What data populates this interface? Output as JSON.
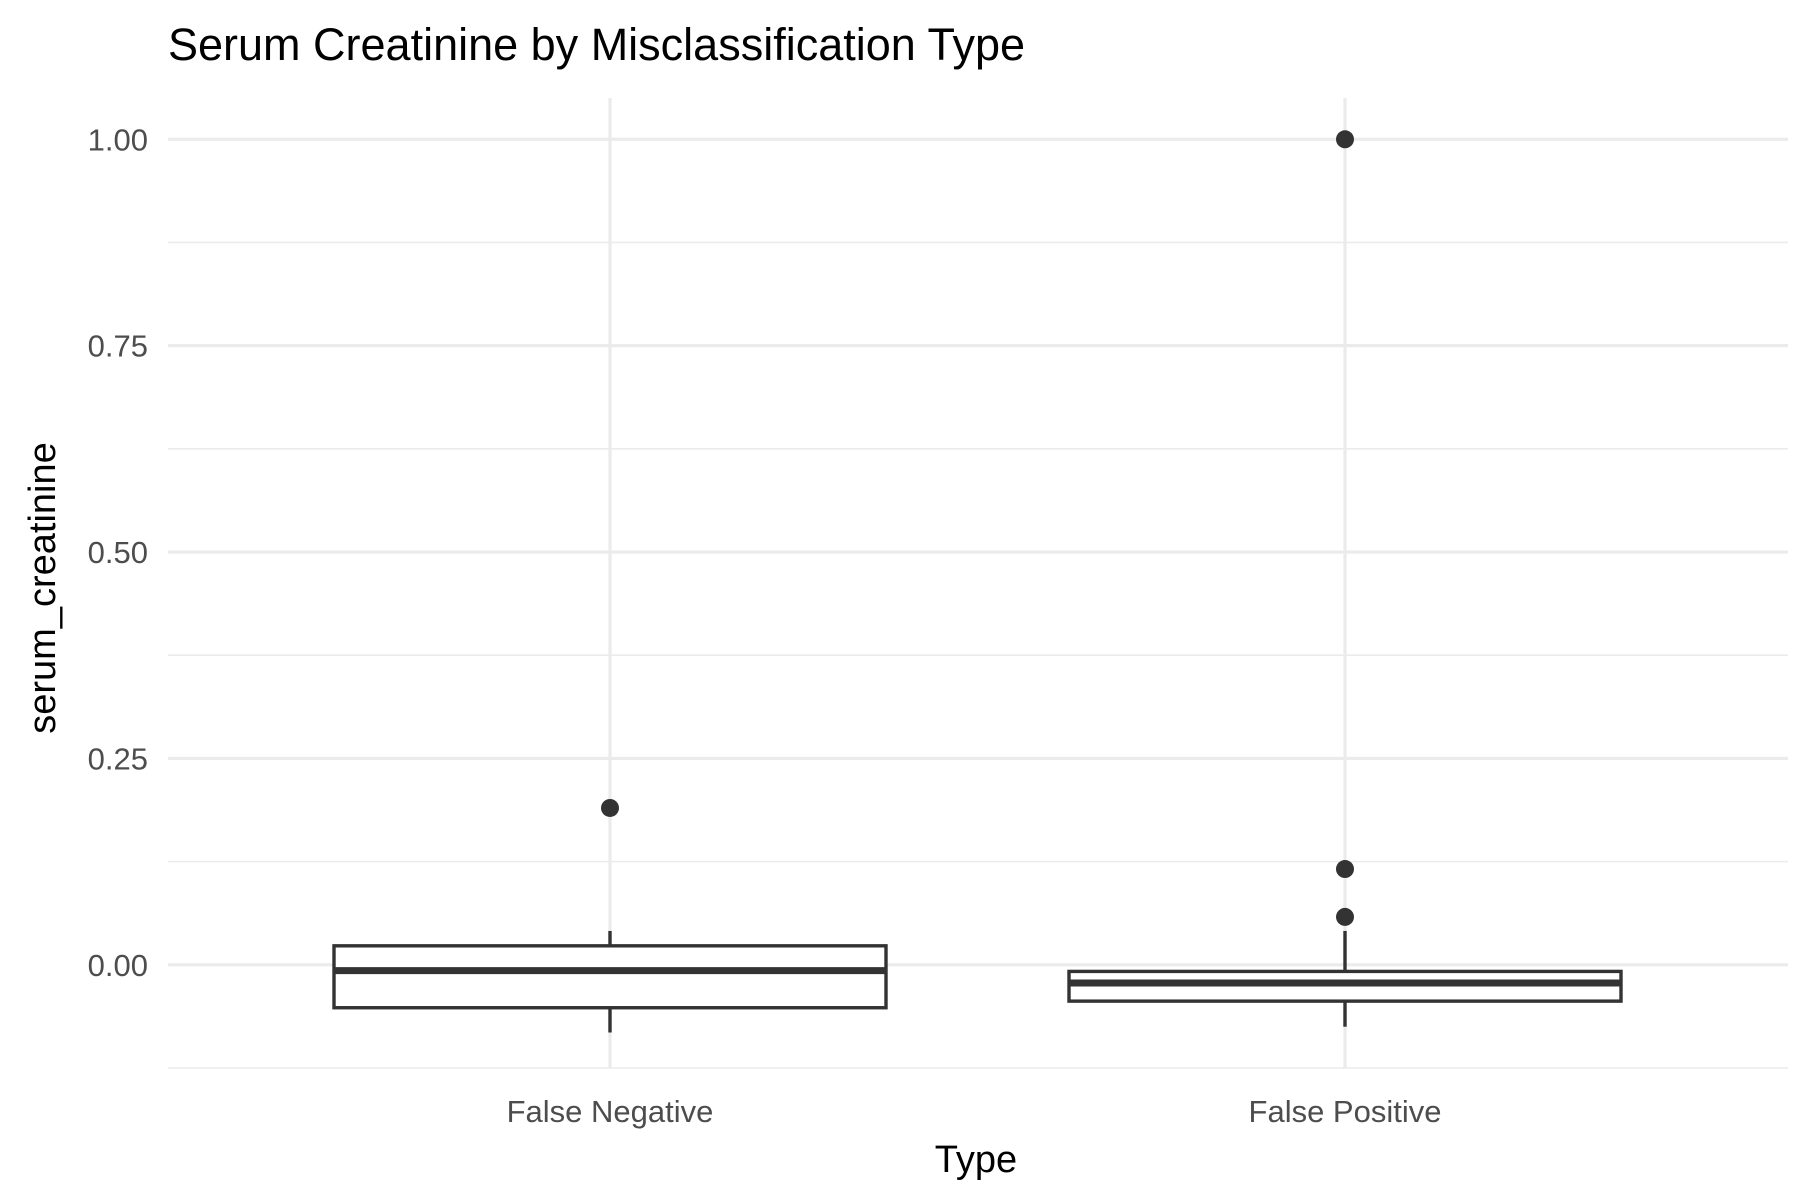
{
  "chart_data": {
    "type": "boxplot",
    "title": "Serum Creatinine by Misclassification Type",
    "xlabel": "Type",
    "ylabel": "serum_creatinine",
    "categories": [
      "False Negative",
      "False Positive"
    ],
    "ylim": [
      -0.125,
      1.05
    ],
    "yticks": [
      0.0,
      0.25,
      0.5,
      0.75,
      1.0
    ],
    "ytick_labels": [
      "0.00",
      "0.25",
      "0.50",
      "0.75",
      "1.00"
    ],
    "yminor": [
      -0.125,
      0.125,
      0.375,
      0.625,
      0.875
    ],
    "grid": true,
    "boxes": [
      {
        "category": "False Negative",
        "whisker_low": -0.082,
        "q1": -0.052,
        "median": -0.007,
        "q3": 0.023,
        "whisker_high": 0.041,
        "outliers": [
          0.19
        ]
      },
      {
        "category": "False Positive",
        "whisker_low": -0.075,
        "q1": -0.044,
        "median": -0.022,
        "q3": -0.008,
        "whisker_high": 0.041,
        "outliers": [
          1.0,
          0.116,
          0.058
        ]
      }
    ]
  }
}
